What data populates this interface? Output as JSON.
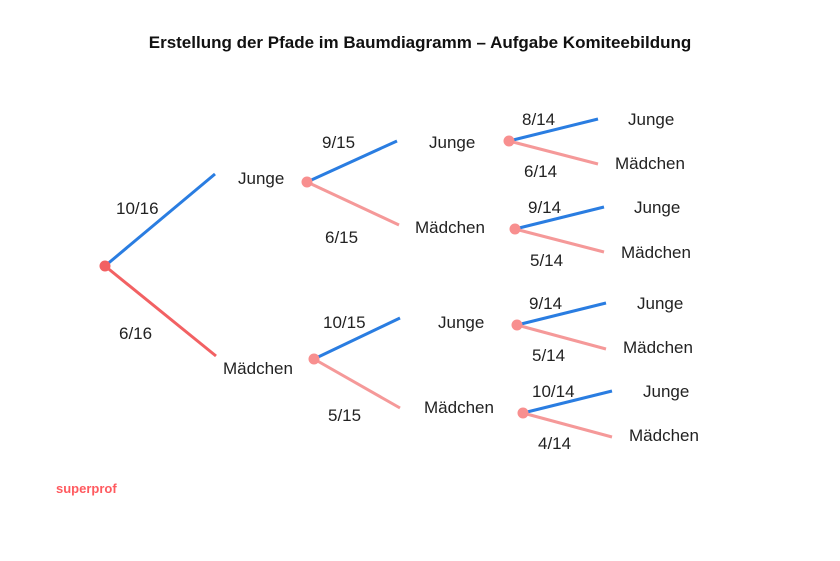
{
  "title": "Erstellung der Pfade im Baumdiagramm – Aufgabe Komiteebildung",
  "brand": "superprof",
  "colors": {
    "boy_branch": "#2a7de1",
    "girl_branch_root": "#f26163",
    "girl_branch": "#f59999",
    "node": "#f88f8f",
    "text": "#222222"
  },
  "tree": {
    "level1": {
      "boy": {
        "label": "Junge",
        "prob": "10/16"
      },
      "girl": {
        "label": "Mädchen",
        "prob": "6/16"
      }
    },
    "level2": {
      "from_boy": {
        "boy": {
          "label": "Junge",
          "prob": "9/15"
        },
        "girl": {
          "label": "Mädchen",
          "prob": "6/15"
        }
      },
      "from_girl": {
        "boy": {
          "label": "Junge",
          "prob": "10/15"
        },
        "girl": {
          "label": "Mädchen",
          "prob": "5/15"
        }
      }
    },
    "level3": {
      "bb": {
        "boy": {
          "label": "Junge",
          "prob": "8/14"
        },
        "girl": {
          "label": "Mädchen",
          "prob": "6/14"
        }
      },
      "bg": {
        "boy": {
          "label": "Junge",
          "prob": "9/14"
        },
        "girl": {
          "label": "Mädchen",
          "prob": "5/14"
        }
      },
      "gb": {
        "boy": {
          "label": "Junge",
          "prob": "9/14"
        },
        "girl": {
          "label": "Mädchen",
          "prob": "5/14"
        }
      },
      "gg": {
        "boy": {
          "label": "Junge",
          "prob": "10/14"
        },
        "girl": {
          "label": "Mädchen",
          "prob": "4/14"
        }
      }
    }
  }
}
